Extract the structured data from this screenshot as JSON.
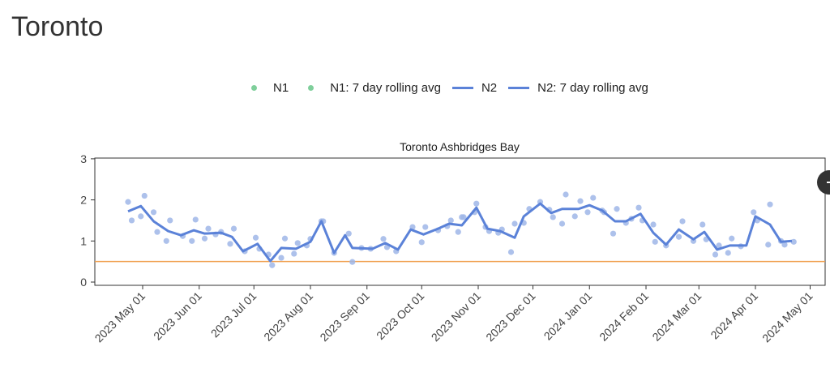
{
  "page_title": "Toronto",
  "legend": [
    {
      "label": "N1",
      "kind": "dot"
    },
    {
      "label": "N1: 7 day rolling avg",
      "kind": "dot"
    },
    {
      "label": "N2",
      "kind": "line"
    },
    {
      "label": "N2: 7 day rolling avg",
      "kind": "line"
    }
  ],
  "colors": {
    "points": "#9fb6e8",
    "line": "#5b82d8",
    "threshold": "#f0a050",
    "n1": "#7fcf9b"
  },
  "chart_data": {
    "type": "line",
    "title": "Toronto Ashbridges Bay",
    "x_unit": "days since 2023-05-01",
    "ylim": [
      0,
      3
    ],
    "xlim": [
      -27,
      372
    ],
    "yticks": [
      0,
      1,
      2,
      3
    ],
    "xticks": [
      {
        "day": 0,
        "label": "2023 May 01"
      },
      {
        "day": 31,
        "label": "2023 Jun 01"
      },
      {
        "day": 61,
        "label": "2023 Jul 01"
      },
      {
        "day": 92,
        "label": "2023 Aug 01"
      },
      {
        "day": 123,
        "label": "2023 Sep 01"
      },
      {
        "day": 153,
        "label": "2023 Oct 01"
      },
      {
        "day": 184,
        "label": "2023 Nov 01"
      },
      {
        "day": 214,
        "label": "2023 Dec 01"
      },
      {
        "day": 245,
        "label": "2024 Jan 01"
      },
      {
        "day": 276,
        "label": "2024 Feb 01"
      },
      {
        "day": 305,
        "label": "2024 Mar 01"
      },
      {
        "day": 336,
        "label": "2024 Apr 01"
      },
      {
        "day": 366,
        "label": "2024 May 01"
      }
    ],
    "threshold": 0.5,
    "points": {
      "days": [
        -8,
        -6,
        -1,
        1,
        6,
        8,
        13,
        15,
        22,
        27,
        29,
        34,
        36,
        40,
        43,
        48,
        50,
        56,
        62,
        64,
        69,
        71,
        76,
        78,
        83,
        85,
        90,
        92,
        98,
        99,
        105,
        113,
        115,
        120,
        125,
        132,
        134,
        139,
        148,
        153,
        155,
        162,
        167,
        169,
        173,
        175,
        176,
        182,
        183,
        188,
        190,
        195,
        197,
        202,
        204,
        209,
        212,
        218,
        223,
        225,
        230,
        232,
        237,
        240,
        244,
        247,
        252,
        253,
        258,
        260,
        265,
        268,
        272,
        274,
        280,
        281,
        287,
        294,
        296,
        302,
        307,
        309,
        314,
        316,
        321,
        323,
        328,
        335,
        337,
        343,
        344,
        350,
        352,
        357
      ],
      "values": [
        1.95,
        1.5,
        1.6,
        2.1,
        1.7,
        1.22,
        1.0,
        1.5,
        1.12,
        1.0,
        1.52,
        1.06,
        1.3,
        1.16,
        1.22,
        0.93,
        1.3,
        0.75,
        1.08,
        0.81,
        0.67,
        0.41,
        0.59,
        1.06,
        0.69,
        0.95,
        0.89,
        1.05,
        1.48,
        1.48,
        0.71,
        1.18,
        0.49,
        0.83,
        0.81,
        1.05,
        0.85,
        0.75,
        1.34,
        0.97,
        1.34,
        1.26,
        1.36,
        1.5,
        1.22,
        1.58,
        1.58,
        1.7,
        1.91,
        1.34,
        1.24,
        1.2,
        1.28,
        0.73,
        1.42,
        1.44,
        1.78,
        1.95,
        1.76,
        1.58,
        1.42,
        2.13,
        1.6,
        1.97,
        1.7,
        2.05,
        1.74,
        1.7,
        1.18,
        1.78,
        1.44,
        1.54,
        1.81,
        1.5,
        1.4,
        0.98,
        0.89,
        1.1,
        1.48,
        1.0,
        1.4,
        1.04,
        0.67,
        0.89,
        0.71,
        1.06,
        0.87,
        1.7,
        1.5,
        0.91,
        1.89,
        1.0,
        0.91,
        0.98
      ]
    },
    "rolling": {
      "days": [
        -8,
        -1,
        6,
        14,
        21,
        28,
        34,
        43,
        49,
        55,
        63,
        70,
        76,
        84,
        92,
        98,
        105,
        111,
        115,
        126,
        133,
        140,
        147,
        154,
        162,
        168,
        175,
        183,
        189,
        196,
        204,
        209,
        218,
        224,
        230,
        239,
        245,
        252,
        259,
        265,
        273,
        280,
        287,
        294,
        302,
        308,
        315,
        322,
        331,
        336,
        344,
        350,
        356
      ],
      "values": [
        1.72,
        1.85,
        1.48,
        1.24,
        1.14,
        1.26,
        1.18,
        1.2,
        1.1,
        0.75,
        0.93,
        0.51,
        0.83,
        0.81,
        0.98,
        1.48,
        0.71,
        1.14,
        0.83,
        0.81,
        0.95,
        0.79,
        1.28,
        1.16,
        1.3,
        1.42,
        1.38,
        1.81,
        1.3,
        1.24,
        1.08,
        1.6,
        1.91,
        1.68,
        1.78,
        1.78,
        1.87,
        1.74,
        1.48,
        1.48,
        1.66,
        1.2,
        0.91,
        1.28,
        1.04,
        1.22,
        0.79,
        0.89,
        0.89,
        1.6,
        1.4,
        0.98,
        1.0
      ]
    }
  }
}
